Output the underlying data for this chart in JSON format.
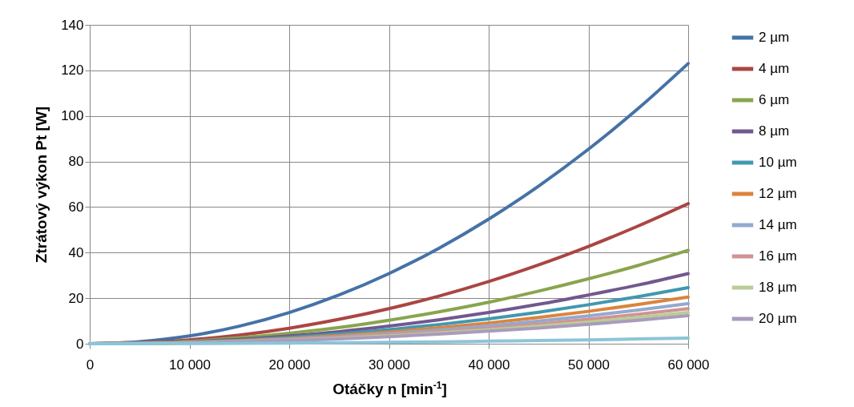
{
  "chart_data": {
    "type": "line",
    "xlabel": "Otáčky n [min$^{-1}$]",
    "ylabel": "Ztrátový výkon Pt [W]",
    "x": [
      0,
      5000,
      10000,
      15000,
      20000,
      25000,
      30000,
      35000,
      40000,
      45000,
      50000,
      55000,
      60000
    ],
    "xlim": [
      0,
      60000
    ],
    "ylim": [
      0,
      140
    ],
    "xticks": [
      0,
      {
        "value": 10000,
        "label": "10 000"
      },
      {
        "value": 20000,
        "label": "20 000"
      },
      {
        "value": 30000,
        "label": "30 000"
      },
      {
        "value": 40000,
        "label": "40 000"
      },
      {
        "value": 50000,
        "label": "50 000"
      },
      {
        "value": 60000,
        "label": "60 000"
      }
    ],
    "yticks": [
      0,
      20,
      40,
      60,
      80,
      100,
      120,
      140
    ],
    "grid": true,
    "legend": "right",
    "line_style": "solid",
    "series": [
      {
        "name": "2 µm",
        "color": "#4572a7",
        "values": [
          0,
          0.9,
          3.4,
          7.7,
          13.7,
          21.4,
          30.8,
          41.9,
          54.7,
          69.2,
          85.4,
          103.3,
          123
        ]
      },
      {
        "name": "4 µm",
        "color": "#aa4643",
        "values": [
          0,
          0.4,
          1.7,
          3.8,
          6.8,
          10.7,
          15.4,
          20.9,
          27.3,
          34.6,
          42.7,
          51.7,
          61.5
        ]
      },
      {
        "name": "6 µm",
        "color": "#89a54e",
        "values": [
          0,
          0.3,
          1.1,
          2.6,
          4.6,
          7.1,
          10.3,
          14,
          18.2,
          23.1,
          28.5,
          34.4,
          41
        ]
      },
      {
        "name": "8 µm",
        "color": "#71588f",
        "values": [
          0,
          0.2,
          0.9,
          1.9,
          3.4,
          5.3,
          7.7,
          10.5,
          13.7,
          17.3,
          21.4,
          25.8,
          30.8
        ]
      },
      {
        "name": "10 µm",
        "color": "#4198af",
        "values": [
          0,
          0.2,
          0.7,
          1.5,
          2.7,
          4.3,
          6.2,
          8.4,
          10.9,
          13.8,
          17.1,
          20.7,
          24.6
        ]
      },
      {
        "name": "12 µm",
        "color": "#db843d",
        "values": [
          0,
          0.1,
          0.6,
          1.3,
          2.3,
          3.6,
          5.1,
          7,
          9.1,
          11.5,
          14.2,
          17.2,
          20.5
        ]
      },
      {
        "name": "14 µm",
        "color": "#93a9cf",
        "values": [
          0,
          0.1,
          0.5,
          1.1,
          2,
          3.1,
          4.4,
          6,
          7.8,
          9.9,
          12.2,
          14.8,
          17.6
        ]
      },
      {
        "name": "16 µm",
        "color": "#d19392",
        "values": [
          0,
          0.1,
          0.4,
          1,
          1.7,
          2.7,
          3.9,
          5.2,
          6.8,
          8.6,
          10.7,
          12.9,
          15.4
        ]
      },
      {
        "name": "18 µm",
        "color": "#b9cd96",
        "values": [
          0,
          0.1,
          0.4,
          0.9,
          1.5,
          2.4,
          3.4,
          4.7,
          6.1,
          7.7,
          9.5,
          11.5,
          13.7
        ]
      },
      {
        "name": "20 µm",
        "color": "#a99bbd",
        "values": [
          0,
          0.1,
          0.3,
          0.8,
          1.4,
          2.1,
          3.1,
          4.2,
          5.5,
          6.9,
          8.5,
          10.3,
          12.3
        ]
      },
      {
        "color": "#8cc5d8",
        "values": [
          0,
          0,
          0.1,
          0.2,
          0.3,
          0.4,
          0.6,
          0.8,
          1.1,
          1.4,
          1.7,
          2.1,
          2.5
        ]
      }
    ]
  }
}
